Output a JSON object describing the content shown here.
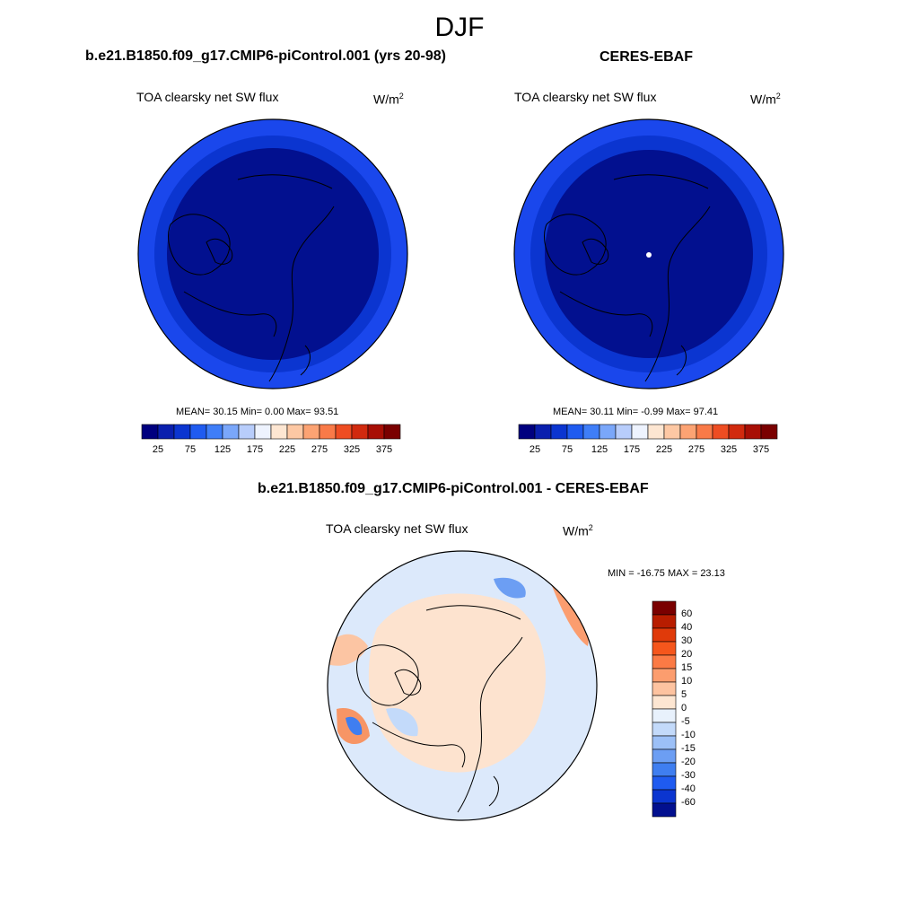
{
  "season": "DJF",
  "units_base": "W/m",
  "units_exp": "2",
  "panels": [
    {
      "title": "b.e21.B1850.f09_g17.CMIP6-piControl.001 (yrs 20-98)",
      "subtitle": "TOA clearsky net SW flux",
      "stats": "MEAN=  30.15  Min=    0.00  Max=  93.51"
    },
    {
      "title": "CERES-EBAF",
      "subtitle": "TOA clearsky net SW flux",
      "stats": "MEAN=  30.11  Min=  -0.99  Max=  97.41"
    },
    {
      "title": "b.e21.B1850.f09_g17.CMIP6-piControl.001 - CERES-EBAF",
      "subtitle": "TOA clearsky net SW flux",
      "stats": "MIN = -16.75 MAX =  23.13"
    }
  ],
  "chart_data": [
    {
      "type": "heatmap",
      "projection": "north-polar-stereographic",
      "title": "b.e21.B1850.f09_g17.CMIP6-piControl.001 (yrs 20-98)",
      "variable": "TOA clearsky net SW flux",
      "units": "W/m2",
      "mean": 30.15,
      "min": 0.0,
      "max": 93.51,
      "colorbar_ticks": [
        "25",
        "75",
        "125",
        "175",
        "225",
        "275",
        "325",
        "375"
      ],
      "colorbar_colors": [
        "#00007f",
        "#0a1fae",
        "#0b35d0",
        "#1f5bf0",
        "#3f7ef8",
        "#7aa7fa",
        "#b8cdfb",
        "#eef3fe",
        "#fde6d2",
        "#fdc8a4",
        "#fca373",
        "#f97a48",
        "#ee4d22",
        "#d12a0e",
        "#a80f05",
        "#7a0000"
      ]
    },
    {
      "type": "heatmap",
      "projection": "north-polar-stereographic",
      "title": "CERES-EBAF",
      "variable": "TOA clearsky net SW flux",
      "units": "W/m2",
      "mean": 30.11,
      "min": -0.99,
      "max": 97.41,
      "colorbar_ticks": [
        "25",
        "75",
        "125",
        "175",
        "225",
        "275",
        "325",
        "375"
      ],
      "colorbar_colors": [
        "#00007f",
        "#0a1fae",
        "#0b35d0",
        "#1f5bf0",
        "#3f7ef8",
        "#7aa7fa",
        "#b8cdfb",
        "#eef3fe",
        "#fde6d2",
        "#fdc8a4",
        "#fca373",
        "#f97a48",
        "#ee4d22",
        "#d12a0e",
        "#a80f05",
        "#7a0000"
      ]
    },
    {
      "type": "heatmap",
      "projection": "north-polar-stereographic",
      "title": "b.e21.B1850.f09_g17.CMIP6-piControl.001 - CERES-EBAF",
      "variable": "TOA clearsky net SW flux",
      "units": "W/m2",
      "min": -16.75,
      "max": 23.13,
      "colorbar_ticks": [
        "60",
        "40",
        "30",
        "20",
        "15",
        "10",
        "5",
        "0",
        "-5",
        "-10",
        "-15",
        "-20",
        "-30",
        "-40",
        "-60"
      ],
      "colorbar_colors": [
        "#7a0000",
        "#b81d00",
        "#e03a0a",
        "#f5561c",
        "#fb7a45",
        "#fc9d6e",
        "#fdc3a0",
        "#fde6d2",
        "#e8f1fc",
        "#c3dafa",
        "#9cc0f7",
        "#6c9ef3",
        "#3f7ef0",
        "#1f5bf0",
        "#0b35d0",
        "#02108f"
      ]
    }
  ]
}
